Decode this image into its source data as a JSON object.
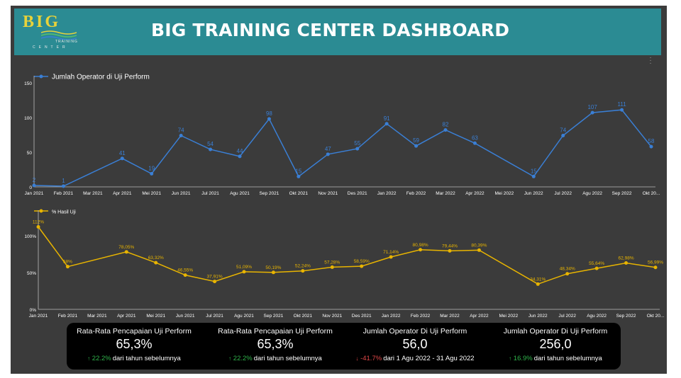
{
  "header": {
    "title": "BIG TRAINING CENTER DASHBOARD",
    "logo": {
      "text": "BIG",
      "sub1": "TRAINING",
      "sub2": "CENTER"
    }
  },
  "colors": {
    "header_bg": "#2b8b93",
    "panel_bg": "#3b3b3b",
    "line1": "#3a7fd5",
    "line2": "#e8b400",
    "kpi_bg": "#000000",
    "up": "#2fb34a",
    "down": "#e24848"
  },
  "menu_icon": "more-vert-icon",
  "chart_data": [
    {
      "type": "line",
      "legend": "Jumlah Operator di Uji Perform",
      "legend_position": "top-left",
      "categories": [
        "Jan 2021",
        "Feb 2021",
        "Mar 2021",
        "Apr 2021",
        "Mei 2021",
        "Jun 2021",
        "Jul 2021",
        "Agu 2021",
        "Sep 2021",
        "Okt 2021",
        "Nov 2021",
        "Des 2021",
        "Jan 2022",
        "Feb 2022",
        "Mar 2022",
        "Apr 2022",
        "Mei 2022",
        "Jun 2022",
        "Jul 2022",
        "Agu 2022",
        "Sep 2022",
        "Okt 20..."
      ],
      "series": [
        {
          "name": "Jumlah Operator di Uji Perform",
          "values": [
            2,
            1,
            null,
            41,
            19,
            74,
            54,
            44,
            98,
            15,
            47,
            55,
            91,
            59,
            82,
            63,
            null,
            15,
            74,
            107,
            111,
            58
          ],
          "labels": [
            "2",
            "1",
            "",
            "41",
            "19",
            "74",
            "54",
            "44",
            "98",
            "15",
            "47",
            "55",
            "91",
            "59",
            "82",
            "63",
            "",
            "15",
            "74",
            "107",
            "111",
            "58"
          ]
        }
      ],
      "yticks": [
        "0",
        "50",
        "100",
        "150"
      ],
      "ylim": [
        0,
        150
      ],
      "grid": false
    },
    {
      "type": "line",
      "legend": "% Hasil Uji",
      "legend_position": "top-left",
      "categories": [
        "Jan 2021",
        "Feb 2021",
        "Mar 2021",
        "Apr 2021",
        "Mei 2021",
        "Jun 2021",
        "Jul 2021",
        "Agu 2021",
        "Sep 2021",
        "Okt 2021",
        "Nov 2021",
        "Des 2021",
        "Jan 2022",
        "Feb 2022",
        "Mar 2022",
        "Apr 2022",
        "Mei 2022",
        "Jun 2022",
        "Jul 2022",
        "Agu 2022",
        "Sep 2022",
        "Okt 20..."
      ],
      "series": [
        {
          "name": "% Hasil Uji",
          "values": [
            112,
            58,
            null,
            78.05,
            63.32,
            46.55,
            37.91,
            51.09,
            50.19,
            52.24,
            57.28,
            58.59,
            71.14,
            80.98,
            79.44,
            80.39,
            null,
            34.31,
            48.34,
            55.64,
            62.98,
            56.99
          ],
          "labels": [
            "112%",
            "58%",
            "",
            "78,05%",
            "63,32%",
            "46,55%",
            "37,91%",
            "51,09%",
            "50,19%",
            "52,24%",
            "57,28%",
            "58,59%",
            "71,14%",
            "80,98%",
            "79,44%",
            "80,39%",
            "",
            "34,31%",
            "48,34%",
            "55,64%",
            "62,98%",
            "56,99%"
          ]
        }
      ],
      "yticks": [
        "0%",
        "50%",
        "100%"
      ],
      "ylim": [
        0,
        125
      ],
      "grid": false
    }
  ],
  "kpis": [
    {
      "label": "Rata-Rata Pencapaian Uji Perform",
      "value": "65,3%",
      "change": "22.2%",
      "direction": "up",
      "arrow": "↑",
      "compare": "dari tahun sebelumnya"
    },
    {
      "label": "Rata-Rata Pencapaian Uji Perform",
      "value": "65,3%",
      "change": "22.2%",
      "direction": "up",
      "arrow": "↑",
      "compare": "dari tahun sebelumnya"
    },
    {
      "label": "Jumlah Operator Di Uji Perform",
      "value": "56,0",
      "change": "-41.7%",
      "direction": "down",
      "arrow": "↓",
      "compare": "dari 1 Agu 2022 - 31 Agu 2022"
    },
    {
      "label": "Jumlah Operator Di Uji Perform",
      "value": "256,0",
      "change": "16.9%",
      "direction": "up",
      "arrow": "↑",
      "compare": "dari tahun sebelumnya"
    }
  ]
}
